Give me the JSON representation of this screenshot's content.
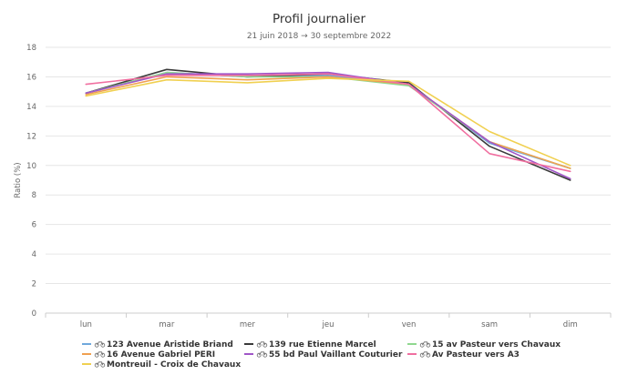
{
  "chart_data": {
    "type": "line",
    "title": "Profil journalier",
    "subtitle": "21 juin 2018 → 30 septembre 2022",
    "xlabel": "",
    "ylabel": "Ratio (%)",
    "ylim": [
      0,
      18
    ],
    "yticks": [
      0,
      2,
      4,
      6,
      8,
      10,
      12,
      14,
      16,
      18
    ],
    "grid": true,
    "legend": "bottom",
    "legend_icon": "bicycle-icon",
    "categories": [
      "lun",
      "mar",
      "mer",
      "jeu",
      "ven",
      "sam",
      "dim"
    ],
    "series": [
      {
        "name": "123 Avenue Aristide Briand",
        "color": "#6fa8dc",
        "values": [
          14.9,
          16.3,
          16.0,
          16.1,
          15.5,
          11.5,
          9.8
        ]
      },
      {
        "name": "139 rue Etienne Marcel",
        "color": "#3a3a3a",
        "values": [
          14.9,
          16.5,
          16.0,
          16.2,
          15.6,
          11.3,
          9.0
        ]
      },
      {
        "name": "15 av Pasteur vers Chavaux",
        "color": "#8fd88f",
        "values": [
          14.9,
          16.3,
          16.0,
          16.0,
          15.4,
          11.6,
          9.8
        ]
      },
      {
        "name": "16 Avenue Gabriel PERI",
        "color": "#f0a050",
        "values": [
          14.8,
          16.0,
          15.8,
          16.0,
          15.5,
          11.6,
          9.8
        ]
      },
      {
        "name": "55 bd Paul Vaillant Couturier",
        "color": "#a056c8",
        "values": [
          14.9,
          16.2,
          16.2,
          16.3,
          15.5,
          11.6,
          9.1
        ]
      },
      {
        "name": "Av Pasteur vers A3",
        "color": "#f06fa0",
        "values": [
          15.5,
          16.1,
          16.1,
          16.2,
          15.5,
          10.8,
          9.6
        ]
      },
      {
        "name": "Montreuil - Croix de Chavaux",
        "color": "#f0d050",
        "values": [
          14.7,
          15.8,
          15.6,
          15.9,
          15.7,
          12.3,
          10.0
        ]
      }
    ]
  }
}
